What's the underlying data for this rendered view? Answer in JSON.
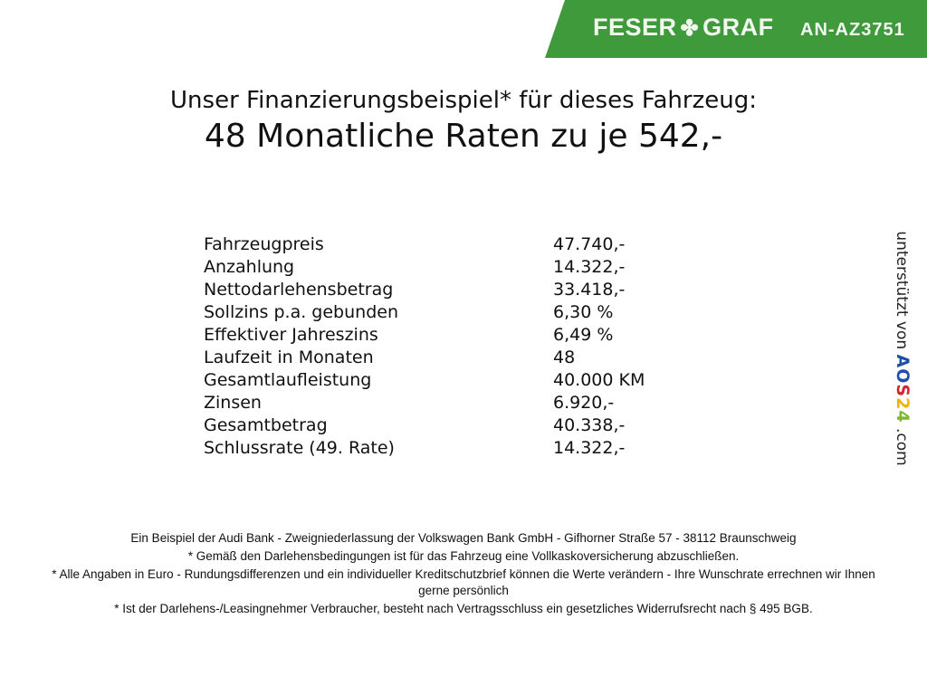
{
  "banner": {
    "brand_left": "FESER",
    "brand_right": "GRAF",
    "ad_id": "AN-AZ3751",
    "color": "#3f9a3b"
  },
  "heading": {
    "line1": "Unser Finanzierungsbeispiel* für dieses Fahrzeug:",
    "line2": "48 Monatliche Raten zu je 542,-"
  },
  "rows": [
    {
      "label": "Fahrzeugpreis",
      "value": "47.740,-"
    },
    {
      "label": "Anzahlung",
      "value": "14.322,-"
    },
    {
      "label": "Nettodarlehensbetrag",
      "value": "33.418,-"
    },
    {
      "label": "Sollzins p.a. gebunden",
      "value": "6,30 %"
    },
    {
      "label": "Effektiver Jahreszins",
      "value": "6,49 %"
    },
    {
      "label": "Laufzeit in Monaten",
      "value": "48"
    },
    {
      "label": "Gesamtlaufleistung",
      "value": "40.000 KM"
    },
    {
      "label": "Zinsen",
      "value": "6.920,-"
    },
    {
      "label": "Gesamtbetrag",
      "value": "40.338,-"
    },
    {
      "label": "Schlussrate (49. Rate)",
      "value": "14.322,-"
    }
  ],
  "side": {
    "text": "unterstützt von",
    "logo": "AOS24",
    "suffix": ".com"
  },
  "footer": [
    "Ein Beispiel der Audi Bank - Zweigniederlassung der Volkswagen Bank GmbH - Gifhorner Straße 57 - 38112 Braunschweig",
    "* Gemäß den Darlehensbedingungen ist für das Fahrzeug eine Vollkaskoversicherung abzuschließen.",
    "* Alle Angaben in Euro - Rundungsdifferenzen und ein individueller Kreditschutzbrief können die Werte verändern - Ihre Wunschrate errechnen wir Ihnen gerne persönlich",
    "* Ist der Darlehens-/Leasingnehmer Verbraucher, besteht nach Vertragsschluss ein gesetzliches Widerrufsrecht nach § 495 BGB."
  ]
}
